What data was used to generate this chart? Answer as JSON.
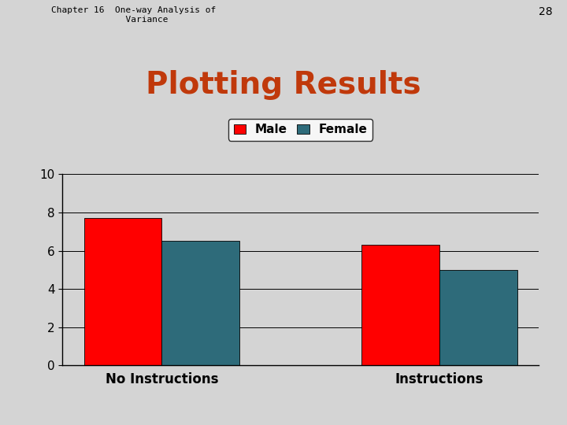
{
  "title": "Plotting Results",
  "title_color": "#C0390B",
  "title_fontsize": 28,
  "title_fontweight": "bold",
  "background_color": "#D4D4D4",
  "plot_bg_color": "#D4D4D4",
  "header_text": "Chapter 16  One-way Analysis of\n              Variance",
  "page_number": "28",
  "categories": [
    "No Instructions",
    "Instructions"
  ],
  "series": {
    "Male": {
      "values": [
        7.7,
        6.3
      ],
      "color": "#FF0000"
    },
    "Female": {
      "values": [
        6.5,
        5.0
      ],
      "color": "#2E6B7A"
    }
  },
  "ylim": [
    0,
    10
  ],
  "yticks": [
    0,
    2,
    4,
    6,
    8,
    10
  ],
  "legend_box_color": "white",
  "legend_edge_color": "black",
  "bar_width": 0.28,
  "xlabel_fontsize": 12,
  "tick_fontsize": 11,
  "legend_fontsize": 11,
  "header_fontsize": 8,
  "page_num_fontsize": 10
}
